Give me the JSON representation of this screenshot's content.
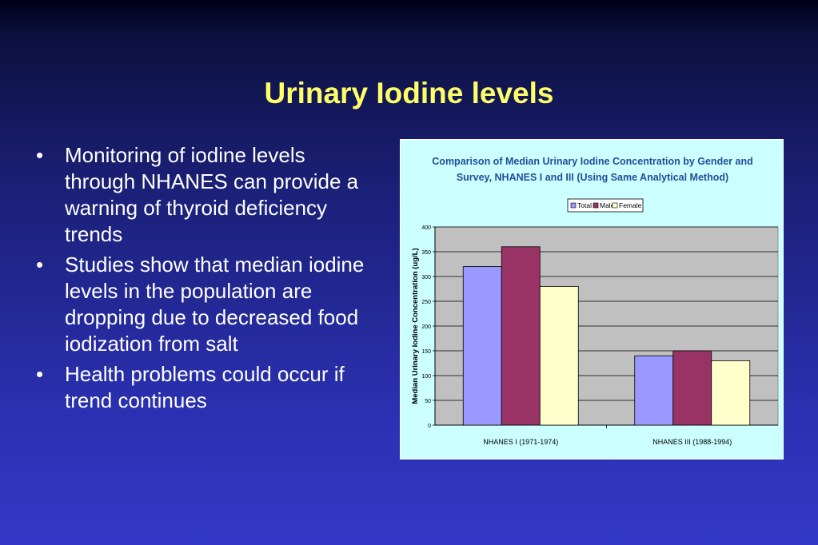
{
  "slide": {
    "title": "Urinary Iodine levels",
    "bullets": [
      "Monitoring of iodine levels through NHANES can provide a warning of thyroid deficiency trends",
      "Studies show that median iodine levels in the population are dropping due to decreased food iodization from salt",
      "Health problems could occur if trend continues"
    ],
    "bullet_symbol": "•"
  },
  "colors": {
    "title": "#ffff66",
    "text": "#ffffff",
    "chart_bg": "#ccffff",
    "plot_bg": "#c0c0c0"
  },
  "chart_data": {
    "type": "bar",
    "title_lines": [
      "Comparison of Median Urinary Iodine Concentration by Gender and",
      "Survey, NHANES I and III (Using Same Analytical Method)"
    ],
    "ylabel": "Median Urinary Iodine Concentration (ug/L)",
    "xlabel": "",
    "categories": [
      "NHANES I (1971-1974)",
      "NHANES III (1988-1994)"
    ],
    "series": [
      {
        "name": "Total",
        "values": [
          320,
          140
        ],
        "color": "#9999ff"
      },
      {
        "name": "Male",
        "values": [
          360,
          150
        ],
        "color": "#993366"
      },
      {
        "name": "Female",
        "values": [
          280,
          130
        ],
        "color": "#ffffcc"
      }
    ],
    "ylim": [
      0,
      400
    ],
    "yticks": [
      0,
      50,
      100,
      150,
      200,
      250,
      300,
      350,
      400
    ],
    "grid": true,
    "legend_position": "top"
  }
}
